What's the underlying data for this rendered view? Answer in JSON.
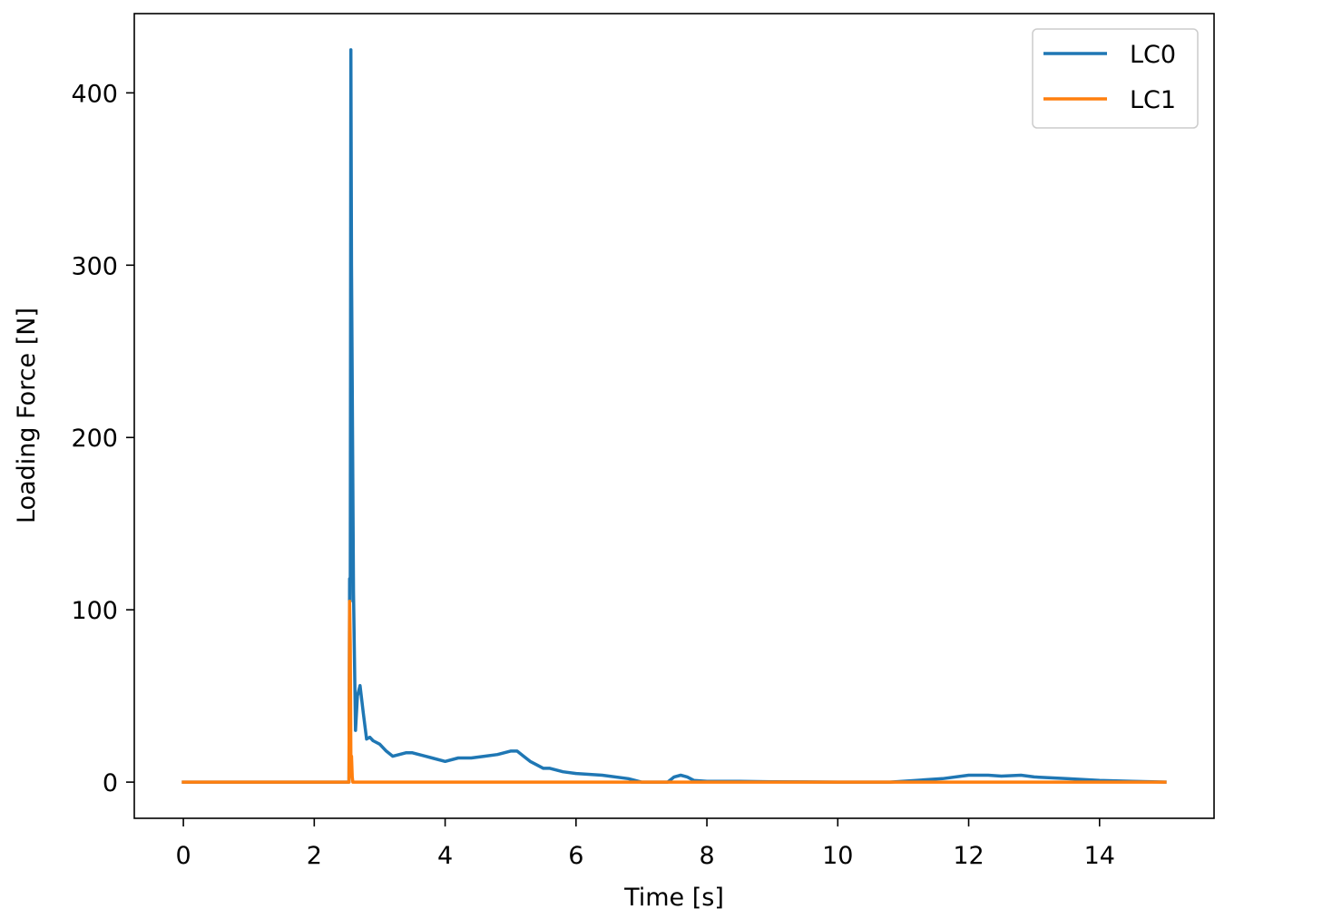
{
  "chart_data": {
    "type": "line",
    "title": "",
    "xlabel": "Time [s]",
    "ylabel": "Loading Force [N]",
    "xlim": [
      -0.75,
      15.75
    ],
    "ylim": [
      -21,
      446
    ],
    "xticks": [
      0,
      2,
      4,
      6,
      8,
      10,
      12,
      14
    ],
    "yticks": [
      0,
      100,
      200,
      300,
      400
    ],
    "xtick_labels": [
      "0",
      "2",
      "4",
      "6",
      "8",
      "10",
      "12",
      "14"
    ],
    "ytick_labels": [
      "0",
      "100",
      "200",
      "300",
      "400"
    ],
    "grid": false,
    "legend_position": "top-right",
    "series": [
      {
        "name": "LC0",
        "color": "#1f77b4",
        "x": [
          0,
          2.5,
          2.53,
          2.54,
          2.55,
          2.56,
          2.57,
          2.6,
          2.63,
          2.66,
          2.7,
          2.75,
          2.8,
          2.85,
          2.9,
          3.0,
          3.1,
          3.2,
          3.3,
          3.4,
          3.5,
          3.6,
          3.7,
          3.8,
          4.0,
          4.2,
          4.4,
          4.6,
          4.8,
          5.0,
          5.1,
          5.2,
          5.3,
          5.4,
          5.5,
          5.6,
          5.8,
          6.0,
          6.4,
          6.8,
          7.0,
          7.1,
          7.3,
          7.4,
          7.5,
          7.6,
          7.7,
          7.8,
          8.0,
          8.5,
          9.0,
          10.0,
          10.8,
          11.2,
          11.6,
          12.0,
          12.3,
          12.5,
          12.8,
          13.0,
          13.5,
          14.0,
          14.5,
          15.0
        ],
        "y": [
          0,
          0,
          0,
          118,
          105,
          425,
          300,
          110,
          30,
          50,
          56,
          40,
          25,
          26,
          24,
          22,
          18,
          15,
          16,
          17,
          17,
          16,
          15,
          14,
          12,
          14,
          14,
          15,
          16,
          18,
          18,
          15,
          12,
          10,
          8,
          8,
          6,
          5,
          4,
          2,
          0,
          0,
          0,
          0,
          3,
          4,
          3,
          1,
          0.5,
          0.5,
          0.2,
          0,
          0,
          1,
          2,
          4,
          4,
          3.5,
          4,
          3,
          2,
          1,
          0.5,
          0
        ]
      },
      {
        "name": "LC1",
        "color": "#ff7f0e",
        "x": [
          0,
          2.52,
          2.53,
          2.54,
          2.55,
          2.56,
          2.57,
          2.58,
          2.59,
          2.6,
          15
        ],
        "y": [
          0,
          0,
          0,
          105,
          80,
          15,
          15,
          3,
          0,
          0,
          0
        ]
      }
    ]
  }
}
